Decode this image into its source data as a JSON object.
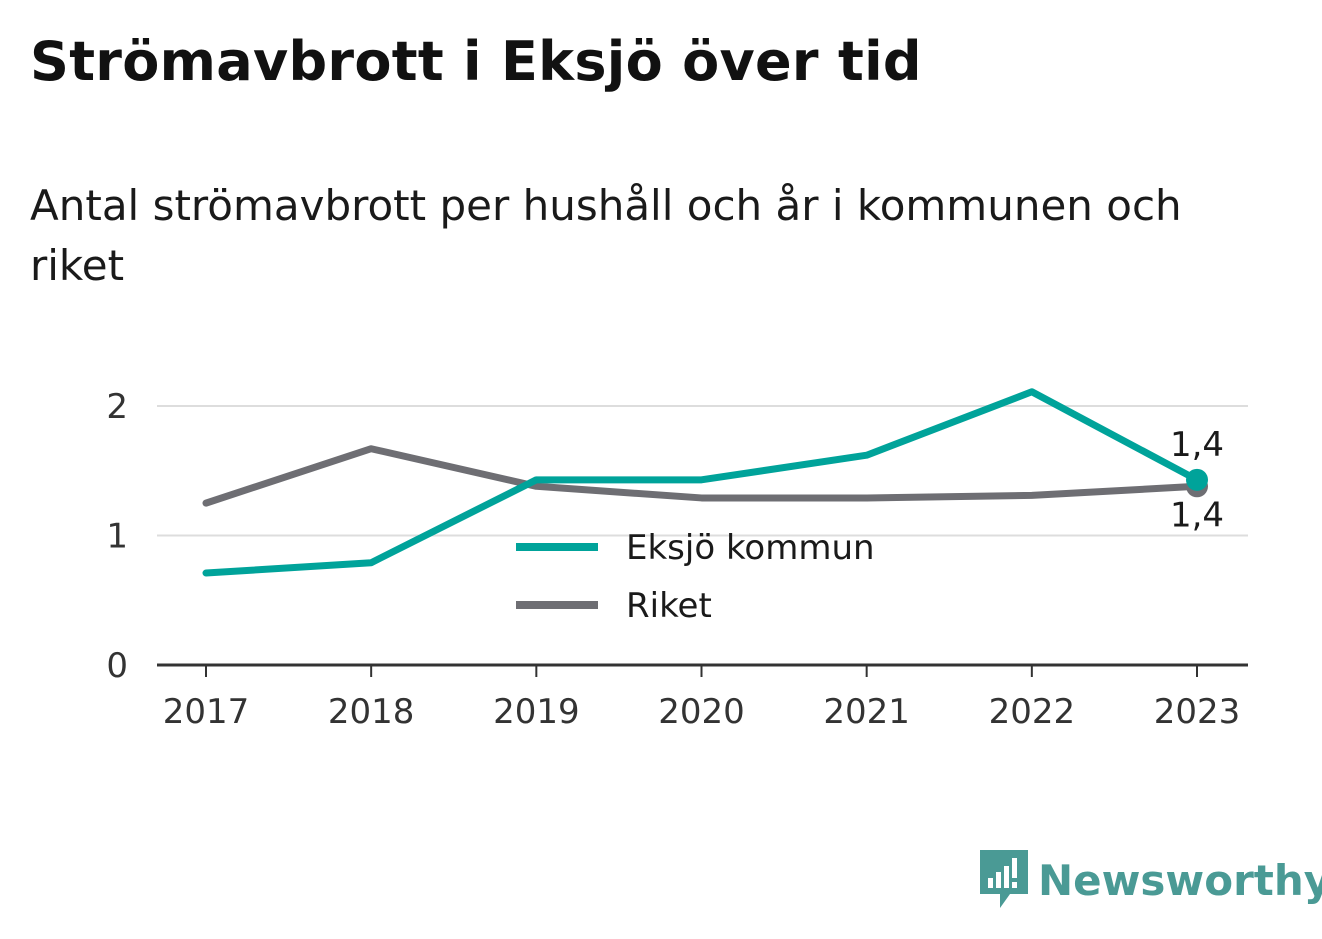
{
  "header": {
    "title": "Strömavbrott i Eksjö över tid",
    "subtitle": "Antal strömavbrott per hushåll och år i kommunen och riket"
  },
  "brand": {
    "name": "Newsworthy",
    "color": "#4a9a95"
  },
  "chart_data": {
    "type": "line",
    "x": [
      "2017",
      "2018",
      "2019",
      "2020",
      "2021",
      "2022",
      "2023"
    ],
    "y_ticks": [
      "0",
      "1",
      "2"
    ],
    "ylim": [
      0,
      2.2
    ],
    "grid": true,
    "legend_position": "center",
    "series": [
      {
        "name": "Eksjö kommun",
        "color": "#00a39a",
        "values": [
          0.71,
          0.79,
          1.43,
          1.43,
          1.62,
          2.11,
          1.43
        ],
        "end_label": "1,4"
      },
      {
        "name": "Riket",
        "color": "#6e6e73",
        "values": [
          1.25,
          1.67,
          1.38,
          1.29,
          1.29,
          1.31,
          1.38
        ],
        "end_label": "1,4"
      }
    ]
  }
}
